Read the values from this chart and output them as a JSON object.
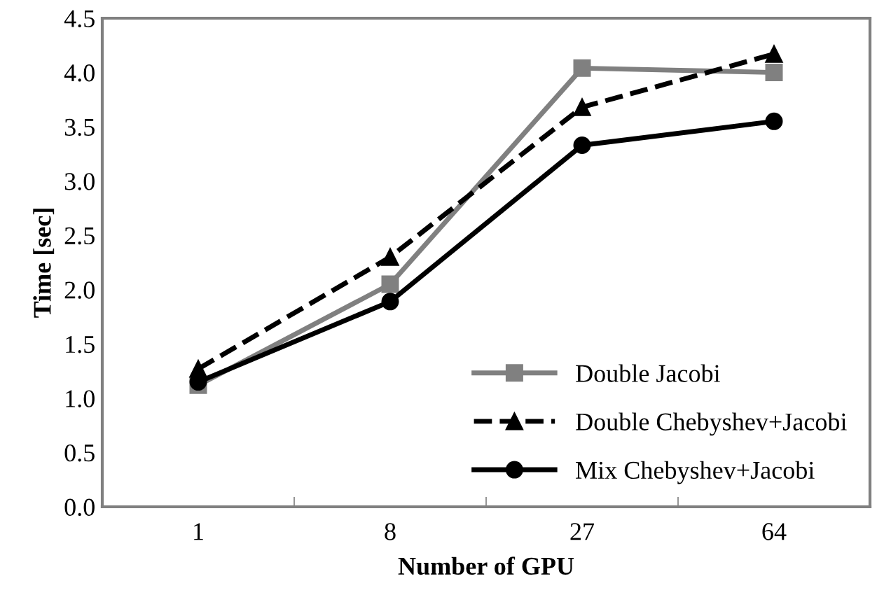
{
  "chart_data": {
    "type": "line",
    "xlabel": "Number of GPU",
    "ylabel": "Time [sec]",
    "categories": [
      "1",
      "8",
      "27",
      "64"
    ],
    "series": [
      {
        "name": "Double Jacobi",
        "color": "#808080",
        "values": [
          1.12,
          2.05,
          4.04,
          4.0
        ],
        "marker": "square",
        "line_style": "solid"
      },
      {
        "name": "Double Chebyshev+Jacobi",
        "color": "#000000",
        "values": [
          1.27,
          2.3,
          3.68,
          4.17
        ],
        "marker": "triangle",
        "line_style": "dashed"
      },
      {
        "name": "Mix Chebyshev+Jacobi",
        "color": "#000000",
        "values": [
          1.15,
          1.89,
          3.33,
          3.55
        ],
        "marker": "circle",
        "line_style": "solid"
      }
    ],
    "ylim": [
      0,
      4.5
    ],
    "yticks": [
      {
        "value": 0,
        "label": "0.0"
      },
      {
        "value": 0.5,
        "label": "0.5"
      },
      {
        "value": 1,
        "label": "1.0"
      },
      {
        "value": 1.5,
        "label": "1.5"
      },
      {
        "value": 2,
        "label": "2.0"
      },
      {
        "value": 2.5,
        "label": "2.5"
      },
      {
        "value": 3,
        "label": "3.0"
      },
      {
        "value": 3.5,
        "label": "3.5"
      },
      {
        "value": 4,
        "label": "4.0"
      },
      {
        "value": 4.5,
        "label": "4.5"
      }
    ],
    "grid": false,
    "legend": "bottom right"
  }
}
